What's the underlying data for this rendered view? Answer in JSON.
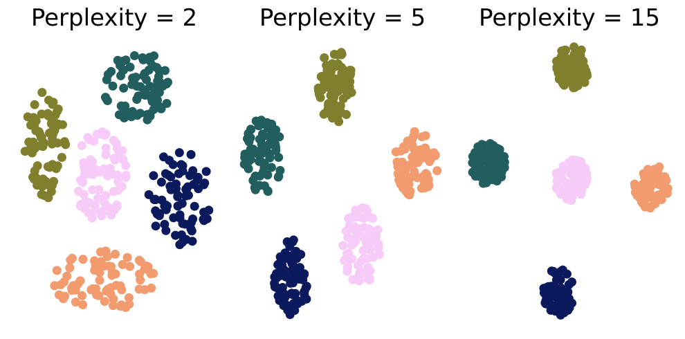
{
  "chart_data": [
    {
      "type": "scatter",
      "title": "Perplexity = 2",
      "xlabel": "",
      "ylabel": "",
      "axes_visible": false,
      "grid": false,
      "legend": "none",
      "clusters": [
        {
          "color": "#7f7f2e",
          "center": [
            65,
            210
          ],
          "spread": [
            30,
            80
          ],
          "count": 75
        },
        {
          "color": "#235e5e",
          "center": [
            200,
            125
          ],
          "spread": [
            50,
            50
          ],
          "count": 75
        },
        {
          "color": "#f7cbf7",
          "center": [
            145,
            255
          ],
          "spread": [
            40,
            65
          ],
          "count": 75
        },
        {
          "color": "#0a1a5c",
          "center": [
            260,
            285
          ],
          "spread": [
            45,
            70
          ],
          "count": 75
        },
        {
          "color": "#f19b6e",
          "center": [
            150,
            405
          ],
          "spread": [
            75,
            45
          ],
          "count": 75
        }
      ]
    },
    {
      "type": "scatter",
      "title": "Perplexity = 5",
      "xlabel": "",
      "ylabel": "",
      "axes_visible": false,
      "grid": false,
      "legend": "none",
      "clusters": [
        {
          "color": "#7f7f2e",
          "center": [
            485,
            125
          ],
          "spread": [
            25,
            55
          ],
          "count": 75
        },
        {
          "color": "#235e5e",
          "center": [
            380,
            225
          ],
          "spread": [
            28,
            55
          ],
          "count": 75
        },
        {
          "color": "#f19b6e",
          "center": [
            600,
            240
          ],
          "spread": [
            32,
            50
          ],
          "count": 75
        },
        {
          "color": "#f7cbf7",
          "center": [
            522,
            355
          ],
          "spread": [
            28,
            55
          ],
          "count": 75
        },
        {
          "color": "#0a1a5c",
          "center": [
            422,
            400
          ],
          "spread": [
            26,
            55
          ],
          "count": 75
        }
      ]
    },
    {
      "type": "scatter",
      "title": "Perplexity = 15",
      "xlabel": "",
      "ylabel": "",
      "axes_visible": false,
      "grid": false,
      "legend": "none",
      "clusters": [
        {
          "color": "#7f7f2e",
          "center": [
            828,
            97
          ],
          "spread": [
            26,
            30
          ],
          "count": 75
        },
        {
          "color": "#235e5e",
          "center": [
            705,
            237
          ],
          "spread": [
            26,
            30
          ],
          "count": 75
        },
        {
          "color": "#f7cbf7",
          "center": [
            825,
            258
          ],
          "spread": [
            24,
            32
          ],
          "count": 75
        },
        {
          "color": "#f19b6e",
          "center": [
            942,
            270
          ],
          "spread": [
            25,
            32
          ],
          "count": 75
        },
        {
          "color": "#0a1a5c",
          "center": [
            807,
            422
          ],
          "spread": [
            22,
            35
          ],
          "count": 75
        }
      ]
    }
  ]
}
